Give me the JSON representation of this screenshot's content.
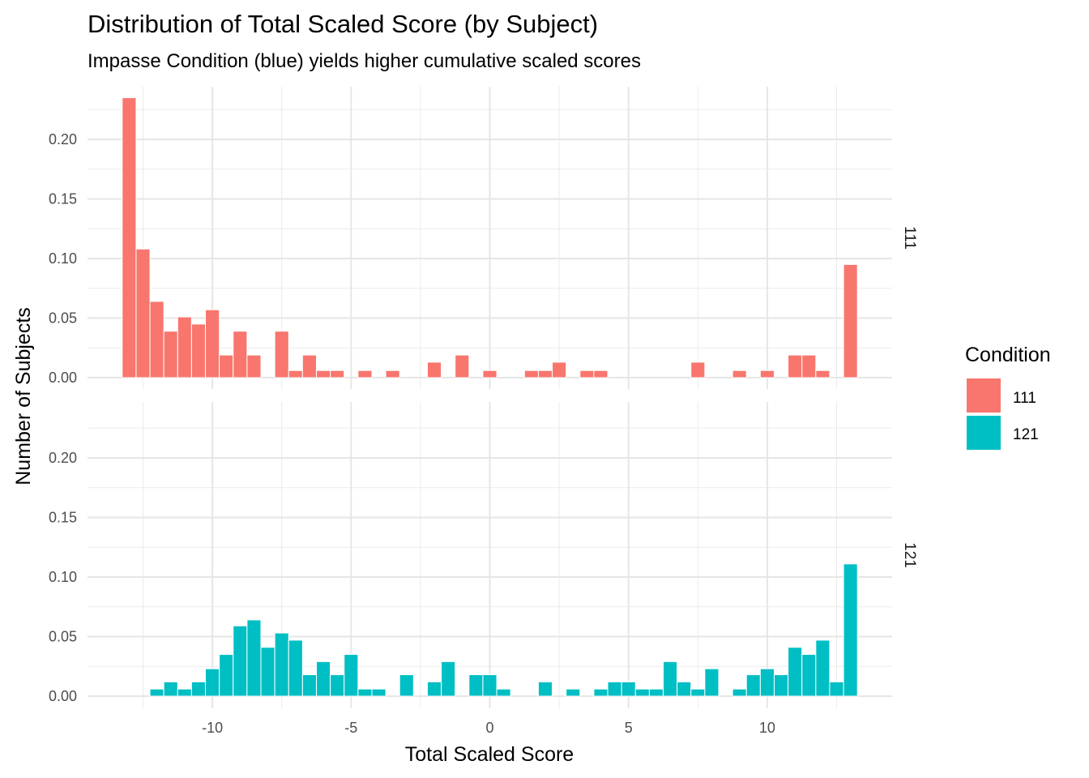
{
  "chart_data": {
    "type": "bar",
    "title": "Distribution of Total Scaled Score (by Subject)",
    "subtitle": "Impasse Condition (blue) yields higher cumulative scaled scores",
    "xlabel": "Total Scaled Score",
    "ylabel": "Number of Subjects",
    "xlim": [
      -14.5,
      14.5
    ],
    "ylim": [
      0,
      0.235
    ],
    "x_ticks": [
      -10,
      -5,
      0,
      5,
      10
    ],
    "x_tick_labels": [
      "-10",
      "-5",
      "0",
      "5",
      "10"
    ],
    "y_ticks": [
      0,
      0.05,
      0.1,
      0.15,
      0.2
    ],
    "y_tick_labels": [
      "0.00",
      "0.05",
      "0.10",
      "0.15",
      "0.20"
    ],
    "bin_width": 0.5,
    "grid": true,
    "legend": {
      "title": "Condition",
      "position": "right"
    },
    "series": [
      {
        "name": "111",
        "facet_label": "111",
        "color": "#F8766D",
        "x": [
          -13,
          -12.5,
          -12,
          -11.5,
          -11,
          -10.5,
          -10,
          -9.5,
          -9,
          -8.5,
          -7.5,
          -7,
          -6.5,
          -6,
          -5.5,
          -4.5,
          -3.5,
          -2,
          -1,
          0,
          1.5,
          2,
          2.5,
          3.5,
          4,
          7.5,
          9,
          10,
          11,
          11.5,
          12,
          13
        ],
        "values": [
          0.235,
          0.108,
          0.064,
          0.039,
          0.051,
          0.045,
          0.057,
          0.019,
          0.039,
          0.019,
          0.039,
          0.006,
          0.019,
          0.006,
          0.006,
          0.006,
          0.006,
          0.013,
          0.019,
          0.006,
          0.006,
          0.006,
          0.013,
          0.006,
          0.006,
          0.013,
          0.006,
          0.006,
          0.019,
          0.019,
          0.006,
          0.095
        ]
      },
      {
        "name": "121",
        "facet_label": "121",
        "color": "#00BFC4",
        "x": [
          -12,
          -11.5,
          -11,
          -10.5,
          -10,
          -9.5,
          -9,
          -8.5,
          -8,
          -7.5,
          -7,
          -6.5,
          -6,
          -5.5,
          -5,
          -4.5,
          -4,
          -3,
          -2,
          -1.5,
          -0.5,
          0,
          0.5,
          2,
          3,
          4,
          4.5,
          5,
          5.5,
          6,
          6.5,
          7,
          7.5,
          8,
          9,
          9.5,
          10,
          10.5,
          11,
          11.5,
          12,
          12.5,
          13
        ],
        "values": [
          0.006,
          0.012,
          0.006,
          0.012,
          0.023,
          0.035,
          0.059,
          0.064,
          0.041,
          0.053,
          0.047,
          0.018,
          0.029,
          0.018,
          0.035,
          0.006,
          0.006,
          0.018,
          0.012,
          0.029,
          0.018,
          0.018,
          0.006,
          0.012,
          0.006,
          0.006,
          0.012,
          0.012,
          0.006,
          0.006,
          0.029,
          0.012,
          0.006,
          0.023,
          0.006,
          0.018,
          0.023,
          0.018,
          0.041,
          0.035,
          0.047,
          0.012,
          0.111
        ]
      }
    ]
  }
}
